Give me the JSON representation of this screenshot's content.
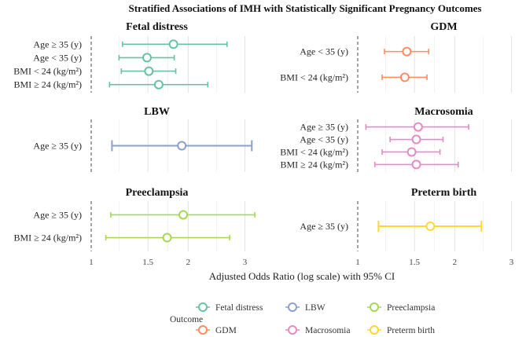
{
  "chart_data": {
    "type": "forest",
    "title": "Stratified Associations of IMH with Statistically Significant Pregnancy Outcomes",
    "xlabel": "Adjusted Odds Ratio (log scale) with 95% CI",
    "x_scale": "log",
    "x_ticks": [
      "1",
      "1.5",
      "2",
      "3"
    ],
    "x_tick_values": [
      1,
      1.5,
      2,
      3
    ],
    "reference_line": 1,
    "legend_title": "Outcome",
    "legend_position": "bottom",
    "colors": {
      "Fetal distress": "#66C2A5",
      "GDM": "#FC8D62",
      "LBW": "#8DA0CB",
      "Macrosomia": "#E78AC3",
      "Preeclampsia": "#A6D854",
      "Preterm birth": "#FFD92F"
    },
    "legend": [
      "Fetal distress",
      "LBW",
      "Preeclampsia",
      "GDM",
      "Macrosomia",
      "Preterm birth"
    ],
    "panels": [
      {
        "outcome": "Fetal distress",
        "rows": [
          {
            "label": "Age ≥ 35 (y)",
            "or": 1.8,
            "lo": 1.25,
            "hi": 2.64
          },
          {
            "label": "Age < 35 (y)",
            "or": 1.49,
            "lo": 1.22,
            "hi": 1.81
          },
          {
            "label": "BMI < 24 (kg/m²)",
            "or": 1.51,
            "lo": 1.24,
            "hi": 1.83
          },
          {
            "label": "BMI ≥ 24 (kg/m²)",
            "or": 1.62,
            "lo": 1.14,
            "hi": 2.3
          }
        ]
      },
      {
        "outcome": "GDM",
        "rows": [
          {
            "label": "Age < 35 (y)",
            "or": 1.42,
            "lo": 1.21,
            "hi": 1.66
          },
          {
            "label": "BMI < 24 (kg/m²)",
            "or": 1.4,
            "lo": 1.19,
            "hi": 1.64
          }
        ]
      },
      {
        "outcome": "LBW",
        "rows": [
          {
            "label": "Age ≥ 35 (y)",
            "or": 1.91,
            "lo": 1.16,
            "hi": 3.15
          }
        ]
      },
      {
        "outcome": "Macrosomia",
        "rows": [
          {
            "label": "Age ≥ 35 (y)",
            "or": 1.54,
            "lo": 1.06,
            "hi": 2.21
          },
          {
            "label": "Age < 35 (y)",
            "or": 1.52,
            "lo": 1.26,
            "hi": 1.84
          },
          {
            "label": "BMI < 24 (kg/m²)",
            "or": 1.47,
            "lo": 1.19,
            "hi": 1.8
          },
          {
            "label": "BMI ≥ 24 (kg/m²)",
            "or": 1.52,
            "lo": 1.13,
            "hi": 2.05
          }
        ]
      },
      {
        "outcome": "Preeclampsia",
        "rows": [
          {
            "label": "Age ≥ 35 (y)",
            "or": 1.93,
            "lo": 1.15,
            "hi": 3.22
          },
          {
            "label": "BMI ≥ 24 (kg/m²)",
            "or": 1.72,
            "lo": 1.11,
            "hi": 2.69
          }
        ]
      },
      {
        "outcome": "Preterm birth",
        "rows": [
          {
            "label": "Age ≥ 35 (y)",
            "or": 1.68,
            "lo": 1.16,
            "hi": 2.42
          }
        ]
      }
    ]
  }
}
